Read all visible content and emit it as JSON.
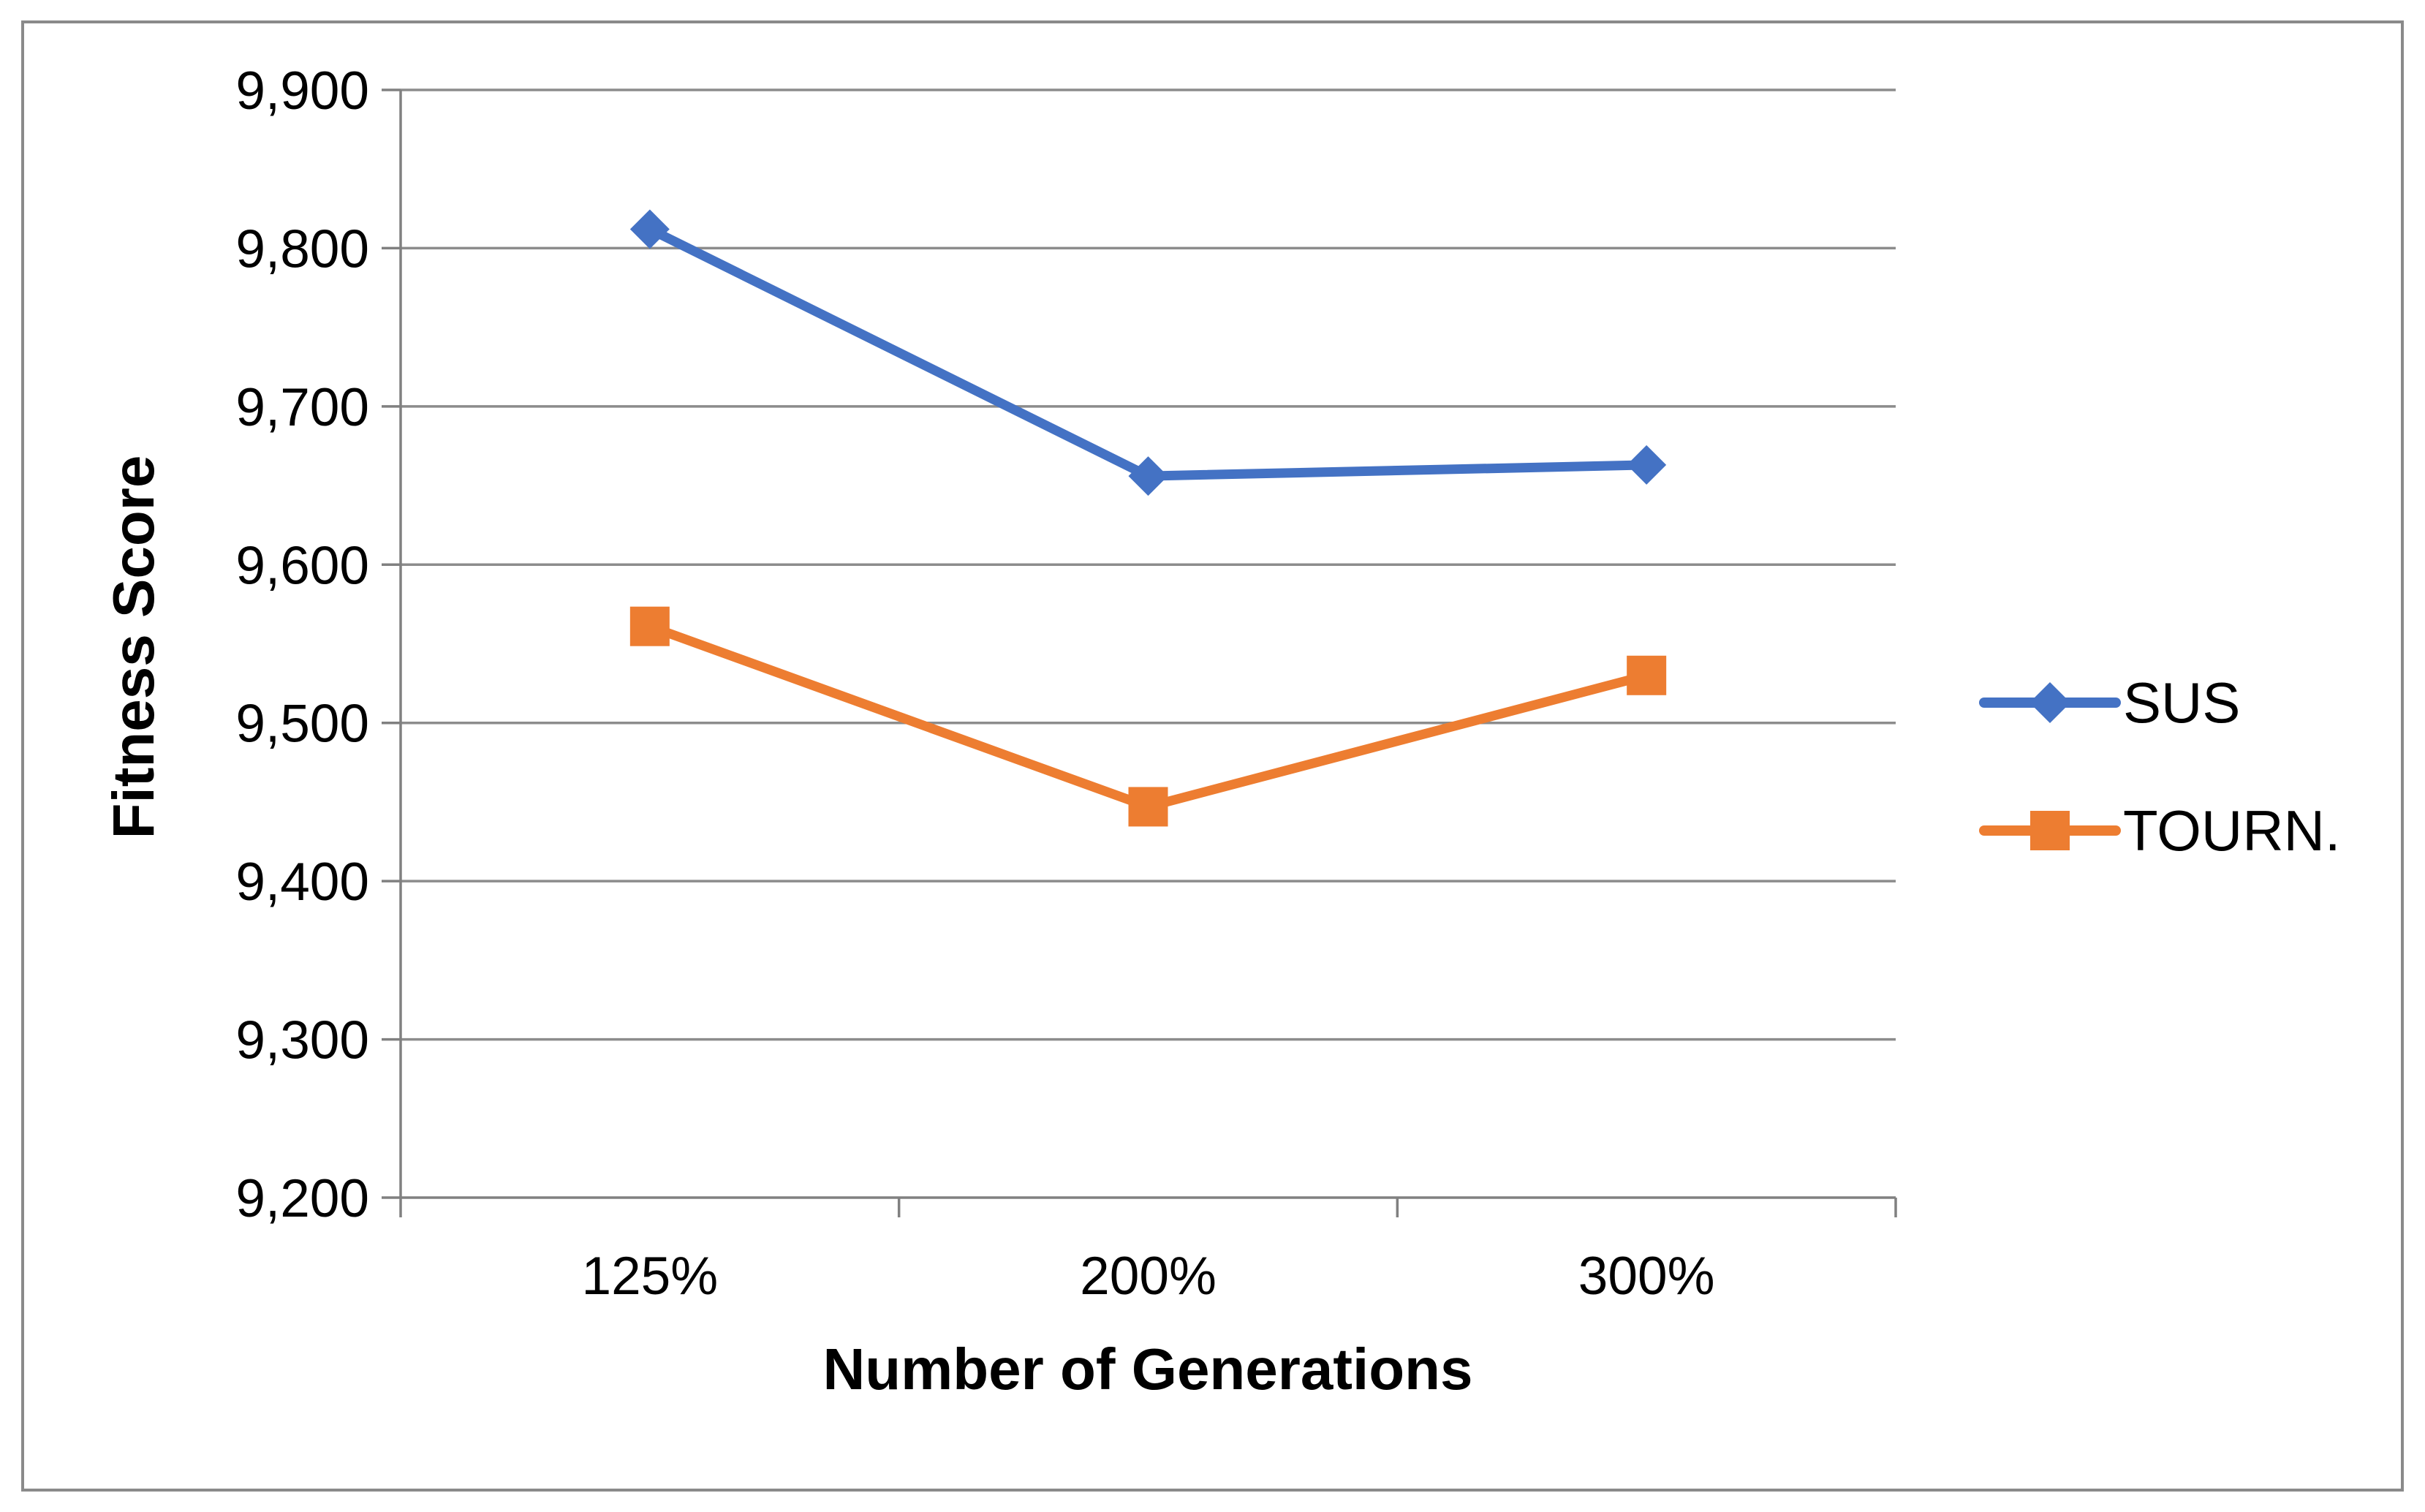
{
  "chart_data": {
    "type": "line",
    "title": "",
    "xlabel": "Number of Generations",
    "ylabel": "Fitness Score",
    "categories": [
      "125%",
      "200%",
      "300%"
    ],
    "series": [
      {
        "name": "SUS",
        "marker": "diamond",
        "color": "#4472C4",
        "values": [
          9812,
          9656,
          9663
        ]
      },
      {
        "name": "TOURN.",
        "marker": "square",
        "color": "#ED7D31",
        "values": [
          9561,
          9447,
          9530
        ]
      }
    ],
    "ylim": [
      9200,
      9900
    ],
    "y_ticks": [
      9200,
      9300,
      9400,
      9500,
      9600,
      9700,
      9800,
      9900
    ],
    "y_tick_labels": [
      "9,200",
      "9,300",
      "9,400",
      "9,500",
      "9,600",
      "9,700",
      "9,800",
      "9,900"
    ],
    "grid": "horizontal-only",
    "legend_position": "right",
    "colors": {
      "gridline": "#8C8C8C",
      "axis": "#808080",
      "text": "#000000",
      "border": "#8A8A8A",
      "background": "#FFFFFF"
    }
  }
}
